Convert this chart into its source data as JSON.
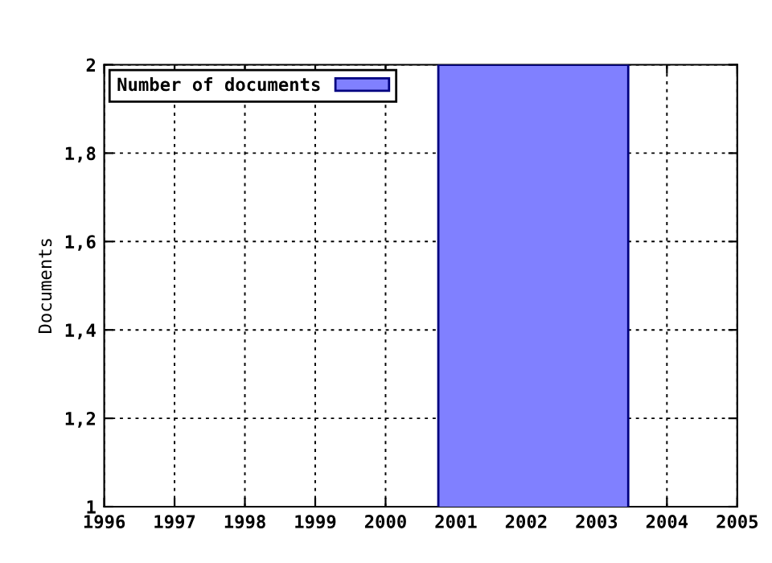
{
  "chart_data": {
    "type": "histogram",
    "ylabel": "Documents",
    "bins": [
      2000.75,
      2003.45
    ],
    "series": [
      {
        "name": "Number of documents",
        "color": "#8080ff",
        "values": [
          2
        ]
      }
    ],
    "xlim": [
      1996,
      2005
    ],
    "xticks": [
      1996,
      1997,
      1998,
      1999,
      2000,
      2001,
      2002,
      2003,
      2004,
      2005
    ],
    "ylim": [
      1,
      2
    ],
    "yticks": [
      1,
      {
        "value": 1.2,
        "label": "1,2"
      },
      {
        "value": 1.4,
        "label": "1,4"
      },
      {
        "value": 1.6,
        "label": "1,6"
      },
      {
        "value": 1.8,
        "label": "1,8"
      },
      2
    ],
    "grid": true,
    "legend": "top left"
  }
}
